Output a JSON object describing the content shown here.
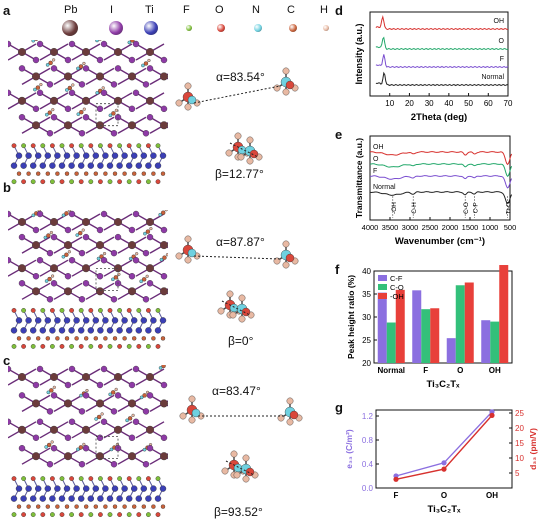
{
  "panels": {
    "a": {
      "label": "a",
      "alpha": "α=83.54°",
      "beta": "β=12.77°"
    },
    "b": {
      "label": "b",
      "alpha": "α=87.87°",
      "beta": "β=0°"
    },
    "c": {
      "label": "c",
      "alpha": "α=83.47°",
      "beta": "β=93.52°"
    },
    "d": {
      "label": "d"
    },
    "e": {
      "label": "e"
    },
    "f": {
      "label": "f"
    },
    "g": {
      "label": "g"
    }
  },
  "legend_elements": [
    {
      "symbol": "Pb",
      "color": "#6b3b3b"
    },
    {
      "symbol": "I",
      "color": "#8e3aa6"
    },
    {
      "symbol": "Ti",
      "color": "#3b3fb5"
    },
    {
      "symbol": "F",
      "color": "#7fbf3a"
    },
    {
      "symbol": "O",
      "color": "#d9473b"
    },
    {
      "symbol": "N",
      "color": "#6fd1e0"
    },
    {
      "symbol": "C",
      "color": "#c9623a"
    },
    {
      "symbol": "H",
      "color": "#e8b9a3"
    }
  ],
  "colors": {
    "oh": "#d7312e",
    "o": "#22a86a",
    "f": "#7b4fd0",
    "normal": "#222222",
    "bar_cf": "#8b6fe0",
    "bar_co": "#33c07a",
    "bar_oh": "#e8403a",
    "g_e33": "#8b6fe0",
    "g_d33": "#d7312e"
  },
  "chart_data": [
    {
      "panel": "d",
      "type": "line",
      "xlabel": "2Theta (deg)",
      "ylabel": "Intensity (a.u.)",
      "xlim": [
        0,
        70
      ],
      "xticks": [
        "10",
        "20",
        "30",
        "40",
        "50",
        "60",
        "70"
      ],
      "series": [
        {
          "name": "OH",
          "offset": 3,
          "peak_x": 6.5
        },
        {
          "name": "O",
          "offset": 2,
          "peak_x": 6.8
        },
        {
          "name": "F",
          "offset": 1,
          "peak_x": 7.0
        },
        {
          "name": "Normal",
          "offset": 0,
          "peak_x": 7.2
        }
      ]
    },
    {
      "panel": "e",
      "type": "line",
      "xlabel": "Wavenumber (cm⁻¹)",
      "ylabel": "Transmittance (a.u.)",
      "xlim": [
        4000,
        500
      ],
      "xticks": [
        "4000",
        "3500",
        "3000",
        "2500",
        "2000",
        "1500",
        "1000",
        "500"
      ],
      "series": [
        {
          "name": "OH",
          "offset": 3
        },
        {
          "name": "O",
          "offset": 2
        },
        {
          "name": "F",
          "offset": 1
        },
        {
          "name": "Normal",
          "offset": 0
        }
      ],
      "annotations": [
        {
          "text": "-OH",
          "x": 3430
        },
        {
          "text": "C-H",
          "x": 2920
        },
        {
          "text": "C-O",
          "x": 1620
        },
        {
          "text": "C-F",
          "x": 1390
        },
        {
          "text": "Ti-O",
          "x": 560
        }
      ]
    },
    {
      "panel": "f",
      "type": "bar",
      "xlabel": "Ti₃C₂Tₓ",
      "ylabel": "Peak height ratio (%)",
      "ylim": [
        20,
        40
      ],
      "yticks": [
        "20",
        "25",
        "30",
        "35",
        "40"
      ],
      "categories": [
        "Normal",
        "F",
        "O",
        "OH"
      ],
      "series": [
        {
          "name": "C-F",
          "values": [
            35.3,
            35.8,
            25.4,
            29.3
          ]
        },
        {
          "name": "C-O",
          "values": [
            28.8,
            31.7,
            36.9,
            29.0
          ]
        },
        {
          "name": "-OH",
          "values": [
            35.9,
            31.9,
            37.5,
            41.3
          ]
        }
      ]
    },
    {
      "panel": "g",
      "type": "line",
      "xlabel": "Ti₃C₂Tₓ",
      "ylabel": "e₃₃ (C/m²)",
      "ylabel_right": "d₃₃ (pm/V)",
      "categories": [
        "F",
        "O",
        "OH"
      ],
      "ylim": [
        0,
        1.3
      ],
      "yticks": [
        "0.0",
        "0.4",
        "0.8",
        "1.2"
      ],
      "ylim_right": [
        0,
        26
      ],
      "yticks_right": [
        "5",
        "10",
        "15",
        "20",
        "25"
      ],
      "series": [
        {
          "name": "e33",
          "axis": "left",
          "values": [
            0.2,
            0.42,
            1.27
          ]
        },
        {
          "name": "d33",
          "axis": "right",
          "values": [
            2.9,
            6.3,
            24.2
          ]
        }
      ]
    }
  ]
}
